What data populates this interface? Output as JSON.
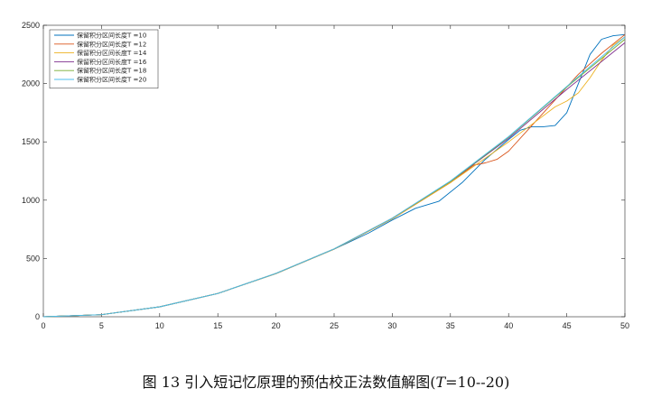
{
  "chart_data": {
    "type": "line",
    "xlim": [
      0,
      50
    ],
    "ylim": [
      0,
      2500
    ],
    "x_ticks": [
      0,
      5,
      10,
      15,
      20,
      25,
      30,
      35,
      40,
      45,
      50
    ],
    "y_ticks": [
      0,
      500,
      1000,
      1500,
      2000,
      2500
    ],
    "grid": false,
    "legend_position": "top-left",
    "series": [
      {
        "name": "保留积分区间长度T =10",
        "color": "#0072BD",
        "x": [
          0,
          5,
          10,
          15,
          20,
          25,
          28,
          30,
          32,
          34,
          36,
          38,
          40,
          41,
          42,
          43,
          44,
          45,
          46,
          47,
          48,
          49,
          50
        ],
        "y": [
          0,
          18,
          85,
          200,
          370,
          580,
          720,
          830,
          930,
          990,
          1150,
          1350,
          1520,
          1600,
          1630,
          1630,
          1640,
          1750,
          2000,
          2250,
          2380,
          2410,
          2420
        ]
      },
      {
        "name": "保留积分区间长度T =12",
        "color": "#D95319",
        "x": [
          0,
          5,
          10,
          15,
          20,
          25,
          30,
          35,
          37,
          38,
          39,
          40,
          42,
          44,
          46,
          48,
          50
        ],
        "y": [
          0,
          18,
          85,
          200,
          370,
          580,
          840,
          1150,
          1300,
          1320,
          1350,
          1420,
          1640,
          1860,
          2080,
          2260,
          2420
        ]
      },
      {
        "name": "保留积分区间长度T =14",
        "color": "#EDB120",
        "x": [
          0,
          5,
          10,
          15,
          20,
          25,
          30,
          35,
          40,
          42,
          44,
          45,
          46,
          47,
          48,
          49,
          50
        ],
        "y": [
          0,
          18,
          85,
          200,
          370,
          580,
          840,
          1150,
          1500,
          1650,
          1800,
          1850,
          1920,
          2050,
          2200,
          2330,
          2400
        ]
      },
      {
        "name": "保留积分区间长度T =16",
        "color": "#7E2F8E",
        "x": [
          0,
          5,
          10,
          15,
          20,
          25,
          30,
          35,
          40,
          45,
          50
        ],
        "y": [
          0,
          18,
          85,
          200,
          372,
          582,
          845,
          1160,
          1530,
          1950,
          2350
        ]
      },
      {
        "name": "保留积分区间长度T =18",
        "color": "#77AC30",
        "x": [
          0,
          5,
          10,
          15,
          20,
          25,
          30,
          35,
          40,
          45,
          50
        ],
        "y": [
          0,
          18,
          85,
          200,
          372,
          582,
          845,
          1160,
          1540,
          1970,
          2380
        ]
      },
      {
        "name": "保留积分区间长度T =20",
        "color": "#4DBEEE",
        "x": [
          0,
          5,
          10,
          15,
          20,
          25,
          30,
          35,
          40,
          45,
          50
        ],
        "y": [
          0,
          18,
          85,
          200,
          372,
          582,
          845,
          1165,
          1545,
          1975,
          2400
        ]
      }
    ]
  },
  "caption": {
    "prefix": "图 13 引入短记忆原理的预估校正法数值解图(",
    "t_symbol": "T",
    "suffix": "=10--20)"
  }
}
